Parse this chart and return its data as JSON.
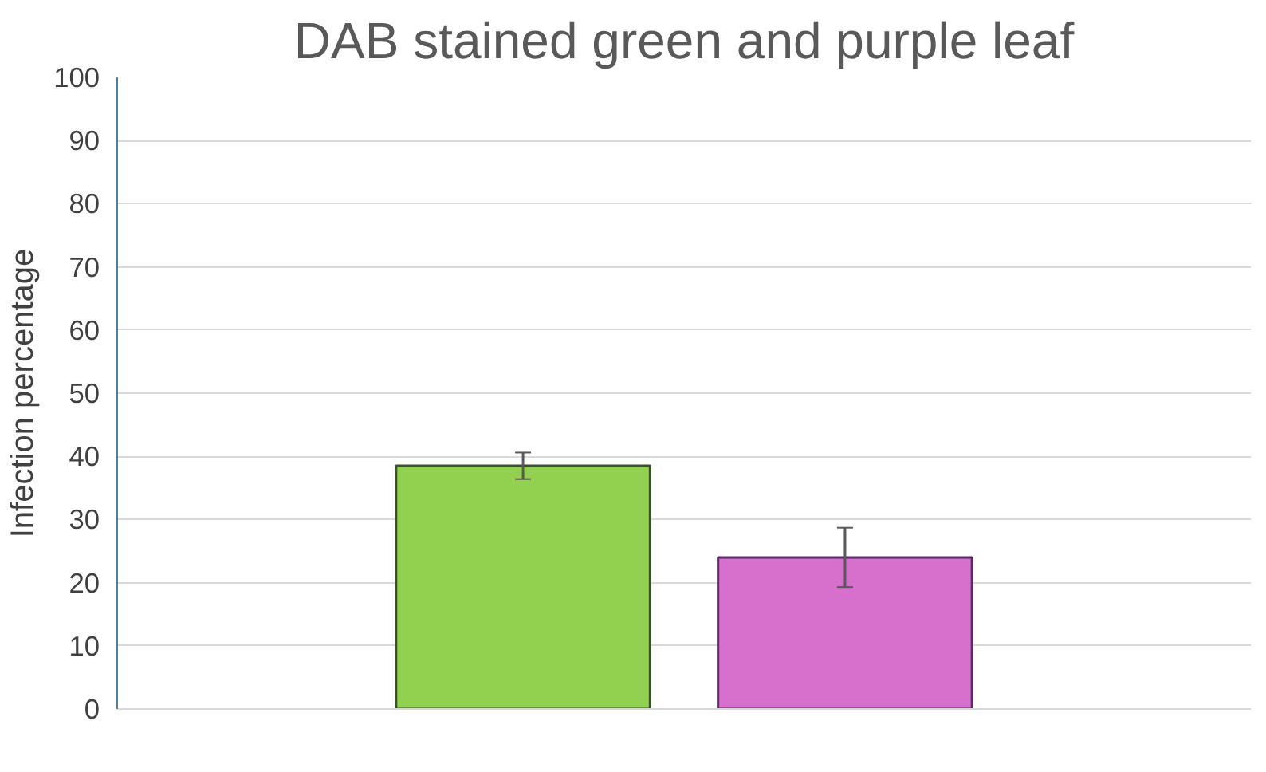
{
  "chart_data": {
    "type": "bar",
    "title": "DAB stained green and purple leaf",
    "ylabel": "Infection percentage",
    "categories": [
      null
    ],
    "series": [
      {
        "color": "#92d050",
        "values": [
          38.5
        ],
        "errors": [
          2.1
        ]
      },
      {
        "color": "#d76fcc",
        "values": [
          24
        ],
        "errors": [
          4.7
        ]
      }
    ],
    "ylim": [
      0,
      100
    ],
    "yticks": [
      0,
      10,
      20,
      30,
      40,
      50,
      60,
      70,
      80,
      90,
      100
    ],
    "grid": "y"
  }
}
